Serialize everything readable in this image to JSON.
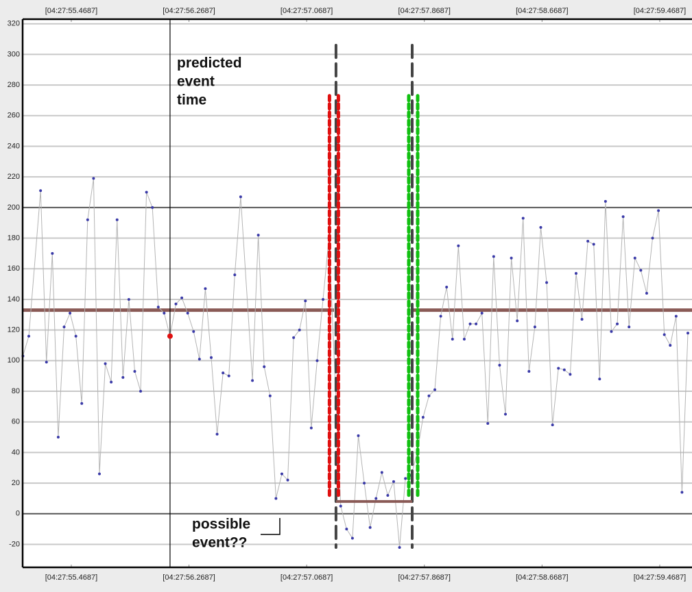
{
  "chart_data": {
    "type": "line",
    "xlim": [
      55.138,
      59.688
    ],
    "ylim": [
      -35,
      323
    ],
    "xticks": [
      {
        "value": 55.4687,
        "label": "[04:27:55.4687]"
      },
      {
        "value": 56.2687,
        "label": "[04:27:56.2687]"
      },
      {
        "value": 57.0687,
        "label": "[04:27:57.0687]"
      },
      {
        "value": 57.8687,
        "label": "[04:27:57.8687]"
      },
      {
        "value": 58.6687,
        "label": "[04:27:58.6687]"
      },
      {
        "value": 59.4687,
        "label": "[04:27:59.4687]"
      }
    ],
    "yticks": [
      -20,
      0,
      20,
      40,
      60,
      80,
      100,
      120,
      140,
      160,
      180,
      200,
      220,
      240,
      260,
      280,
      300,
      320
    ],
    "major_yticks": [
      0,
      200
    ],
    "grid": true,
    "series": [
      {
        "color": "#3a3aa8",
        "line_color": "#b4b4b4",
        "x": [
          55.14,
          55.18,
          55.26,
          55.3,
          55.34,
          55.38,
          55.42,
          55.46,
          55.5,
          55.54,
          55.58,
          55.62,
          55.66,
          55.7,
          55.74,
          55.78,
          55.82,
          55.86,
          55.9,
          55.94,
          55.98,
          56.02,
          56.06,
          56.1,
          56.14,
          56.18,
          56.22,
          56.26,
          56.3,
          56.34,
          56.38,
          56.42,
          56.46,
          56.5,
          56.54,
          56.58,
          56.62,
          56.7,
          56.74,
          56.78,
          56.82,
          56.86,
          56.9,
          56.94,
          56.98,
          57.02,
          57.06,
          57.1,
          57.14,
          57.18,
          57.22,
          57.3,
          57.34,
          57.38,
          57.42,
          57.46,
          57.5,
          57.54,
          57.58,
          57.62,
          57.66,
          57.7,
          57.74,
          57.78,
          57.82,
          57.86,
          57.9,
          57.94,
          57.98,
          58.02,
          58.06,
          58.1,
          58.14,
          58.18,
          58.22,
          58.26,
          58.3,
          58.34,
          58.38,
          58.42,
          58.46,
          58.5,
          58.54,
          58.58,
          58.62,
          58.66,
          58.7,
          58.74,
          58.78,
          58.82,
          58.86,
          58.9,
          58.94,
          58.98,
          59.02,
          59.06,
          59.1,
          59.14,
          59.18,
          59.22,
          59.26,
          59.3,
          59.34,
          59.38,
          59.42,
          59.46,
          59.5,
          59.54,
          59.58,
          59.62,
          59.66
        ],
        "values": [
          103,
          116,
          211,
          99,
          170,
          50,
          122,
          131,
          116,
          72,
          192,
          219,
          26,
          98,
          86,
          192,
          89,
          140,
          93,
          80,
          210,
          200,
          135,
          131,
          116,
          137,
          141,
          131,
          119,
          101,
          147,
          102,
          52,
          92,
          90,
          156,
          207,
          87,
          182,
          96,
          77,
          10,
          26,
          22,
          115,
          120,
          139,
          56,
          100,
          140,
          180,
          5,
          -10,
          -16,
          51,
          20,
          -9,
          10,
          27,
          12,
          21,
          -22,
          23,
          25,
          40,
          63,
          77,
          81,
          129,
          148,
          114,
          175,
          114,
          124,
          124,
          131,
          59,
          168,
          97,
          65,
          167,
          126,
          193,
          93,
          122,
          187,
          151,
          58,
          95,
          94,
          91,
          157,
          127,
          178,
          176,
          88,
          204,
          119,
          124,
          194,
          122,
          167,
          159,
          144,
          180,
          198,
          117,
          110,
          129,
          14,
          118
        ]
      }
    ],
    "baseline": 133,
    "baseline_color": "#8a5a56",
    "predicted_time": 56.14,
    "predicted_value": 116,
    "event_level": 8,
    "event_range": [
      57.268,
      57.786
    ],
    "event_span": [
      -22,
      306
    ],
    "windows": [
      {
        "x": 57.254,
        "range": [
          10,
          273
        ],
        "color": "#e01010"
      },
      {
        "x": 57.793,
        "range": [
          10,
          273
        ],
        "color": "#10c010"
      }
    ],
    "annotations": [
      {
        "lines": [
          "predicted",
          "event",
          "time"
        ]
      },
      {
        "lines": [
          "possible",
          "event??"
        ]
      }
    ]
  }
}
